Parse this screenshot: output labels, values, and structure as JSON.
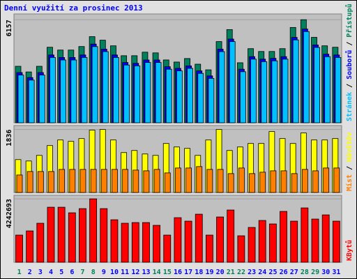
{
  "chart_data": [
    {
      "type": "bar",
      "title": "Denní využití za prosinec 2013",
      "series": [
        {
          "name": "Přístupů",
          "color": "#00805c",
          "values": [
            3374,
            3036,
            3374,
            4512,
            4344,
            4344,
            4554,
            5145,
            4934,
            4597,
            4006,
            4006,
            4217,
            4175,
            3753,
            3627,
            3838,
            3500,
            3163,
            4850,
            5567,
            3585,
            4428,
            4259,
            4259,
            4428,
            5693,
            6157,
            5103,
            4597,
            4512
          ]
        },
        {
          "name": "Souborů",
          "color": "#0000ff",
          "values": [
            3000,
            2700,
            3000,
            4050,
            3900,
            3900,
            4050,
            4700,
            4400,
            4050,
            3600,
            3550,
            3750,
            3750,
            3350,
            3250,
            3400,
            3100,
            2800,
            4400,
            5000,
            3200,
            3950,
            3800,
            3850,
            3950,
            5100,
            5600,
            4650,
            4100,
            4050
          ]
        },
        {
          "name": "Stránek",
          "color": "#00c0ff",
          "values": [
            2850,
            2550,
            2850,
            3900,
            3750,
            3750,
            3900,
            4550,
            4250,
            3900,
            3450,
            3400,
            3600,
            3600,
            3200,
            3100,
            3250,
            2950,
            2650,
            4250,
            4850,
            3050,
            3800,
            3650,
            3700,
            3800,
            4950,
            5450,
            4500,
            3950,
            3900
          ]
        }
      ],
      "ylim": [
        0,
        6500
      ],
      "yticks": [
        6157
      ]
    },
    {
      "type": "bar",
      "series": [
        {
          "name": "Návštěv",
          "color": "#ffff00",
          "values": [
            959,
            918,
            1081,
            1367,
            1530,
            1489,
            1571,
            1816,
            1836,
            1530,
            1163,
            1224,
            1122,
            1081,
            1428,
            1326,
            1285,
            1081,
            1530,
            1836,
            1224,
            1326,
            1428,
            1428,
            1775,
            1571,
            1428,
            1734,
            1530,
            1530,
            1571
          ]
        },
        {
          "name": "Míst",
          "color": "#ff8000",
          "values": [
            510,
            612,
            612,
            612,
            673,
            673,
            673,
            673,
            673,
            673,
            673,
            653,
            632,
            673,
            571,
            714,
            714,
            755,
            673,
            673,
            551,
            714,
            551,
            592,
            632,
            632,
            551,
            673,
            632,
            714,
            714
          ]
        }
      ],
      "ylim": [
        0,
        1950
      ],
      "yticks": [
        1836
      ]
    },
    {
      "type": "bar",
      "categories": [
        "1",
        "2",
        "3",
        "4",
        "5",
        "6",
        "7",
        "8",
        "9",
        "10",
        "11",
        "12",
        "13",
        "14",
        "15",
        "16",
        "17",
        "18",
        "19",
        "20",
        "21",
        "22",
        "23",
        "24",
        "25",
        "26",
        "27",
        "28",
        "29",
        "30",
        "31"
      ],
      "category_colors": [
        "#00805c",
        "#0000ff",
        "#0000ff",
        "#0000ff",
        "#0000ff",
        "#0000ff",
        "#00805c",
        "#00805c",
        "#0000ff",
        "#0000ff",
        "#0000ff",
        "#0000ff",
        "#0000ff",
        "#00805c",
        "#00805c",
        "#0000ff",
        "#0000ff",
        "#0000ff",
        "#0000ff",
        "#0000ff",
        "#00805c",
        "#00805c",
        "#0000ff",
        "#0000ff",
        "#0000ff",
        "#0000ff",
        "#0000ff",
        "#00805c",
        "#00805c",
        "#0000ff",
        "#0000ff"
      ],
      "series": [
        {
          "name": "KBytů",
          "color": "#ff0000",
          "values": [
            1818300,
            2098000,
            2610900,
            3683200,
            3683200,
            3310200,
            3590000,
            4242693,
            3590000,
            2844000,
            2610900,
            2657500,
            2657500,
            2471000,
            1818300,
            2983900,
            2750800,
            3217000,
            1818300,
            3030500,
            3496700,
            1771700,
            2331100,
            2797400,
            2564300,
            3403500,
            2750800,
            3636600,
            2890600,
            3170400,
            2750800
          ]
        }
      ],
      "ylim": [
        0,
        4480000
      ],
      "yticks": [
        4242693
      ]
    }
  ]
}
